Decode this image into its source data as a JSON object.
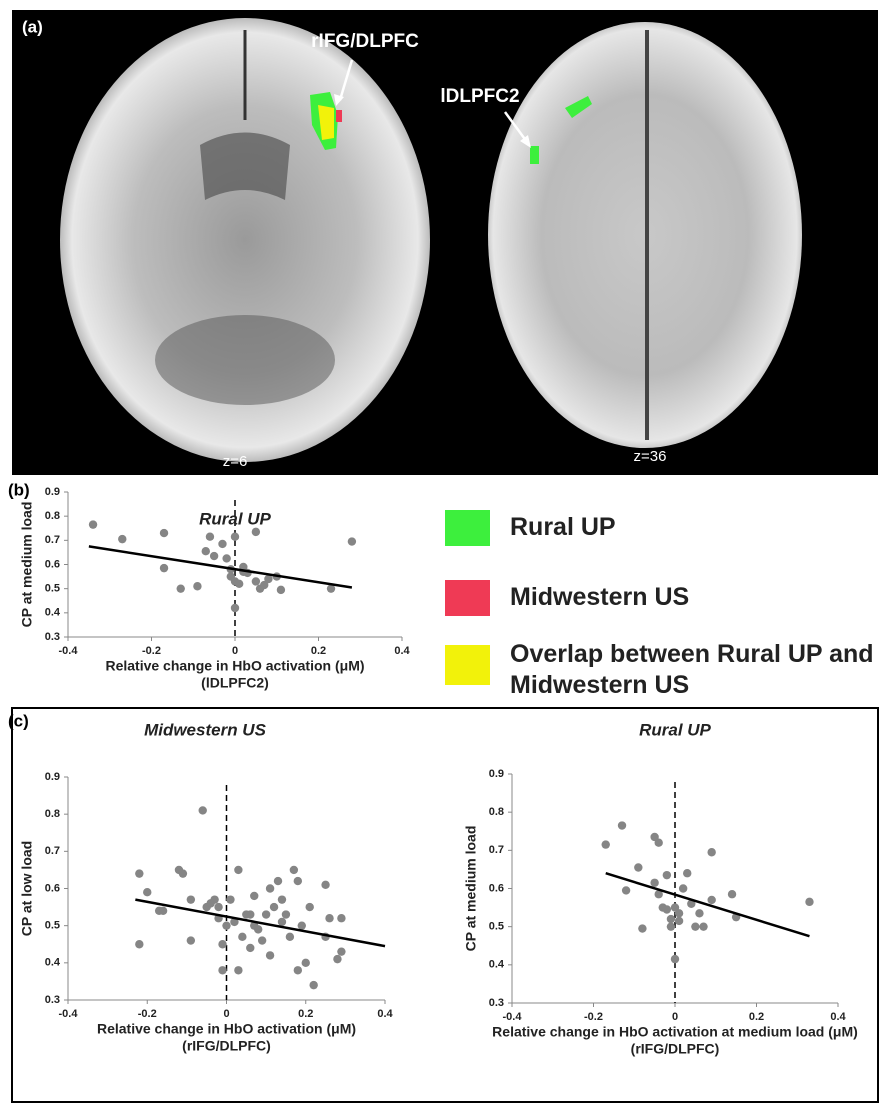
{
  "panel_a": {
    "panel": "(a)",
    "annotations": [
      "rIFG/DLPFC",
      "lDLPFC2"
    ],
    "slices": [
      "z=6",
      "z=36"
    ]
  },
  "legend": {
    "items": [
      {
        "label": "Rural UP",
        "color": "#3def3d"
      },
      {
        "label": "Midwestern US",
        "color": "#ef3a55"
      },
      {
        "label": "Overlap between Rural UP and Midwestern US",
        "color": "#f2f20a"
      }
    ]
  },
  "chart_data": [
    {
      "type": "scatter",
      "panel": "(b)",
      "title": "Rural UP",
      "xlabel": "Relative change in HbO activation (μM)",
      "xlabel_region": "(lDLPFC2)",
      "ylabel": "CP at medium load",
      "color": "#858585",
      "x": [
        -0.34,
        -0.27,
        -0.17,
        -0.17,
        -0.13,
        -0.09,
        -0.07,
        -0.06,
        -0.05,
        -0.03,
        -0.02,
        -0.01,
        -0.01,
        0,
        0,
        0,
        0.01,
        0.02,
        0.03,
        0.05,
        0.05,
        0.06,
        0.07,
        0.08,
        0.1,
        0.11,
        0.23,
        0.28,
        0.02
      ],
      "y": [
        0.765,
        0.705,
        0.73,
        0.585,
        0.5,
        0.51,
        0.655,
        0.715,
        0.635,
        0.685,
        0.625,
        0.55,
        0.58,
        0.715,
        0.42,
        0.53,
        0.52,
        0.59,
        0.565,
        0.735,
        0.53,
        0.5,
        0.515,
        0.54,
        0.55,
        0.495,
        0.5,
        0.695,
        0.57
      ],
      "trendline": {
        "x": [
          -0.35,
          0.28
        ],
        "y": [
          0.675,
          0.505
        ]
      },
      "xlim": [
        -0.4,
        0.4
      ],
      "xticks": [
        -0.4,
        -0.2,
        0,
        0.2,
        0.4
      ],
      "ylim": [
        0.3,
        0.9
      ],
      "yticks": [
        0.3,
        0.4,
        0.5,
        0.6,
        0.7,
        0.8,
        0.9
      ]
    },
    {
      "type": "scatter",
      "panel": "(c)",
      "title": "Midwestern US",
      "xlabel": "Relative change in HbO activation (μM)",
      "xlabel_region": "(rIFG/DLPFC)",
      "ylabel": "CP at low load",
      "color": "#858585",
      "x": [
        -0.22,
        -0.2,
        -0.22,
        -0.17,
        -0.16,
        -0.12,
        -0.11,
        -0.09,
        -0.09,
        -0.06,
        -0.05,
        -0.04,
        -0.03,
        -0.02,
        -0.02,
        -0.01,
        -0.01,
        0,
        0.01,
        0.02,
        0.03,
        0.03,
        0.05,
        0.06,
        0.07,
        0.07,
        0.08,
        0.09,
        0.1,
        0.11,
        0.11,
        0.12,
        0.13,
        0.14,
        0.15,
        0.16,
        0.17,
        0.18,
        0.18,
        0.19,
        0.2,
        0.21,
        0.22,
        0.25,
        0.25,
        0.26,
        0.28,
        0.29,
        0.29,
        0.04,
        0.06,
        0.14
      ],
      "y": [
        0.64,
        0.59,
        0.45,
        0.54,
        0.54,
        0.65,
        0.64,
        0.57,
        0.46,
        0.81,
        0.55,
        0.56,
        0.57,
        0.55,
        0.52,
        0.45,
        0.38,
        0.5,
        0.57,
        0.51,
        0.38,
        0.65,
        0.53,
        0.53,
        0.5,
        0.58,
        0.49,
        0.46,
        0.53,
        0.6,
        0.42,
        0.55,
        0.62,
        0.57,
        0.53,
        0.47,
        0.65,
        0.38,
        0.62,
        0.5,
        0.4,
        0.55,
        0.34,
        0.61,
        0.47,
        0.52,
        0.41,
        0.43,
        0.52,
        0.47,
        0.44,
        0.51
      ],
      "trendline": {
        "x": [
          -0.23,
          0.4
        ],
        "y": [
          0.57,
          0.445
        ]
      },
      "xlim": [
        -0.4,
        0.4
      ],
      "xticks": [
        -0.4,
        -0.2,
        0,
        0.2,
        0.4
      ],
      "ylim": [
        0.3,
        0.9
      ],
      "yticks": [
        0.3,
        0.4,
        0.5,
        0.6,
        0.7,
        0.8,
        0.9
      ]
    },
    {
      "type": "scatter",
      "title": "Rural UP",
      "xlabel": "Relative change in HbO activation at medium load (μM)",
      "xlabel_region": "(rIFG/DLPFC)",
      "ylabel": "CP at medium load",
      "color": "#858585",
      "x": [
        -0.17,
        -0.13,
        -0.09,
        -0.08,
        -0.12,
        -0.05,
        -0.04,
        -0.05,
        -0.04,
        -0.03,
        -0.02,
        -0.02,
        -0.01,
        -0.01,
        0,
        0,
        0.01,
        0.02,
        0.03,
        0.04,
        0.05,
        0.06,
        0.07,
        0.09,
        0.09,
        0.14,
        0.15,
        0.33,
        0.01
      ],
      "y": [
        0.715,
        0.765,
        0.655,
        0.495,
        0.595,
        0.735,
        0.72,
        0.615,
        0.585,
        0.55,
        0.635,
        0.545,
        0.52,
        0.5,
        0.55,
        0.415,
        0.515,
        0.6,
        0.64,
        0.56,
        0.5,
        0.535,
        0.5,
        0.695,
        0.57,
        0.585,
        0.525,
        0.565,
        0.535
      ],
      "trendline": {
        "x": [
          -0.17,
          0.33
        ],
        "y": [
          0.64,
          0.475
        ]
      },
      "xlim": [
        -0.4,
        0.4
      ],
      "xticks": [
        -0.4,
        -0.2,
        0,
        0.2,
        0.4
      ],
      "ylim": [
        0.3,
        0.9
      ],
      "yticks": [
        0.3,
        0.4,
        0.5,
        0.6,
        0.7,
        0.8,
        0.9
      ]
    }
  ]
}
